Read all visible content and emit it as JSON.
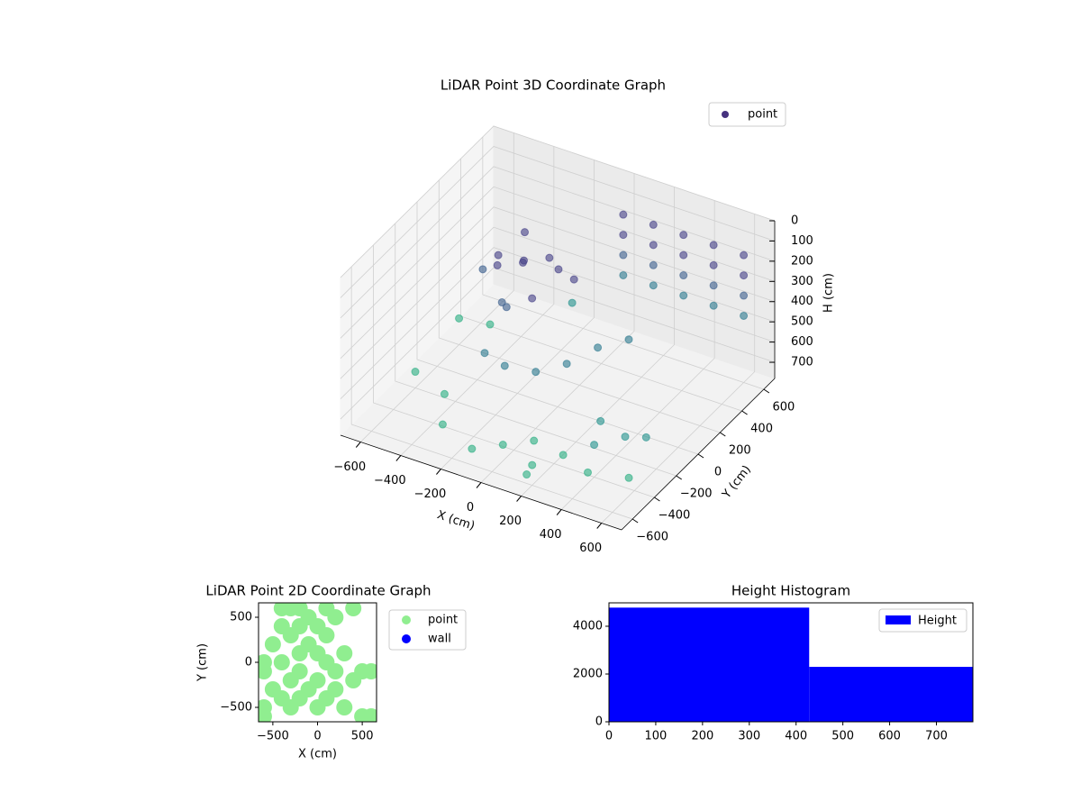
{
  "chart_data": [
    {
      "type": "scatter3d",
      "title": "LiDAR Point 3D Coordinate Graph",
      "xlabel": "X (cm)",
      "ylabel": "Y (cm)",
      "zlabel": "H (cm)",
      "xlim": [
        -700,
        700
      ],
      "ylim": [
        -700,
        700
      ],
      "zlim": [
        0,
        780
      ],
      "z_inverted": true,
      "xticks": [
        {
          "value": -600,
          "label": "−600"
        },
        {
          "value": -400,
          "label": "−400"
        },
        {
          "value": -200,
          "label": "−200"
        },
        0,
        200,
        400,
        600
      ],
      "yticks": [
        {
          "value": -600,
          "label": "−600"
        },
        {
          "value": -400,
          "label": "−400"
        },
        {
          "value": -200,
          "label": "−200"
        },
        0,
        200,
        400,
        600
      ],
      "zticks": [
        0,
        100,
        200,
        300,
        400,
        500,
        600,
        700
      ],
      "grid": true,
      "legend": "upper right",
      "alpha": 0.6,
      "colormap": [
        "#440154",
        "#433e85",
        "#3b5e8c",
        "#2a788e",
        "#21918c",
        "#28ae80"
      ],
      "series": [
        {
          "name": "point",
          "color": "#46327e",
          "x": [
            0,
            0,
            0,
            0,
            150,
            150,
            150,
            150,
            300,
            300,
            300,
            300,
            450,
            450,
            450,
            450,
            600,
            600,
            600,
            600,
            -350,
            -300,
            -250,
            -200,
            -150,
            -100,
            -300,
            -200,
            -50,
            0,
            -400,
            -250,
            -100,
            0,
            100,
            200,
            300,
            -200,
            300,
            400,
            500,
            200,
            450,
            550,
            350,
            600,
            -600,
            -500,
            -300,
            -100,
            100,
            -400,
            0,
            -600,
            200,
            -200
          ],
          "y": [
            600,
            600,
            600,
            600,
            600,
            600,
            600,
            600,
            600,
            600,
            600,
            600,
            600,
            600,
            600,
            600,
            600,
            600,
            600,
            600,
            100,
            0,
            150,
            50,
            200,
            -50,
            250,
            -100,
            100,
            150,
            50,
            -50,
            -300,
            -200,
            -100,
            0,
            100,
            -300,
            -500,
            -400,
            -300,
            -600,
            -550,
            -200,
            -250,
            -450,
            -200,
            300,
            -500,
            -600,
            -400,
            -300,
            -500,
            200,
            -650,
            500
          ],
          "z": [
            150,
            250,
            350,
            450,
            150,
            250,
            350,
            450,
            150,
            250,
            350,
            450,
            150,
            250,
            350,
            450,
            150,
            250,
            350,
            450,
            200,
            180,
            220,
            160,
            200,
            250,
            150,
            300,
            170,
            230,
            260,
            320,
            450,
            500,
            480,
            420,
            400,
            420,
            650,
            620,
            600,
            680,
            660,
            640,
            600,
            690,
            700,
            700,
            700,
            700,
            700,
            690,
            700,
            650,
            700,
            600
          ]
        }
      ]
    },
    {
      "type": "scatter",
      "title": "LiDAR Point 2D Coordinate Graph",
      "xlabel": "X (cm)",
      "ylabel": "Y (cm)",
      "xlim": [
        -660,
        660
      ],
      "ylim": [
        -660,
        660
      ],
      "xticks": [
        {
          "value": -500,
          "label": "−500"
        },
        0,
        500
      ],
      "yticks": [
        {
          "value": -500,
          "label": "−500"
        },
        0,
        500
      ],
      "legend": "outside right",
      "series": [
        {
          "name": "point",
          "color": "#90ee90",
          "x": [
            -600,
            -600,
            -600,
            -600,
            -500,
            -500,
            -400,
            -400,
            -400,
            -400,
            -300,
            -300,
            -300,
            -300,
            -200,
            -200,
            -200,
            -200,
            -200,
            -100,
            -100,
            -100,
            0,
            0,
            0,
            0,
            100,
            100,
            100,
            100,
            200,
            200,
            200,
            300,
            300,
            400,
            400,
            500,
            500,
            600,
            600
          ],
          "y": [
            -600,
            -500,
            -100,
            0,
            200,
            -300,
            600,
            400,
            0,
            -400,
            600,
            300,
            -200,
            -500,
            600,
            400,
            100,
            -100,
            -400,
            500,
            200,
            -300,
            400,
            100,
            -200,
            -500,
            600,
            300,
            0,
            -400,
            500,
            -100,
            -300,
            -500,
            100,
            600,
            -200,
            -600,
            -100,
            -100,
            -600
          ]
        },
        {
          "name": "wall",
          "color": "#0000ff",
          "x": [],
          "y": []
        }
      ]
    },
    {
      "type": "histogram",
      "title": "Height Histogram",
      "bins": [
        0,
        428,
        778
      ],
      "values": [
        4780,
        2300
      ],
      "color": "#0000ff",
      "name": "Height",
      "legend": "upper right",
      "xlim": [
        0,
        778
      ],
      "ylim": [
        0,
        4980
      ],
      "xticks": [
        0,
        100,
        200,
        300,
        400,
        500,
        600,
        700
      ],
      "yticks": [
        0,
        2000,
        4000
      ]
    }
  ]
}
